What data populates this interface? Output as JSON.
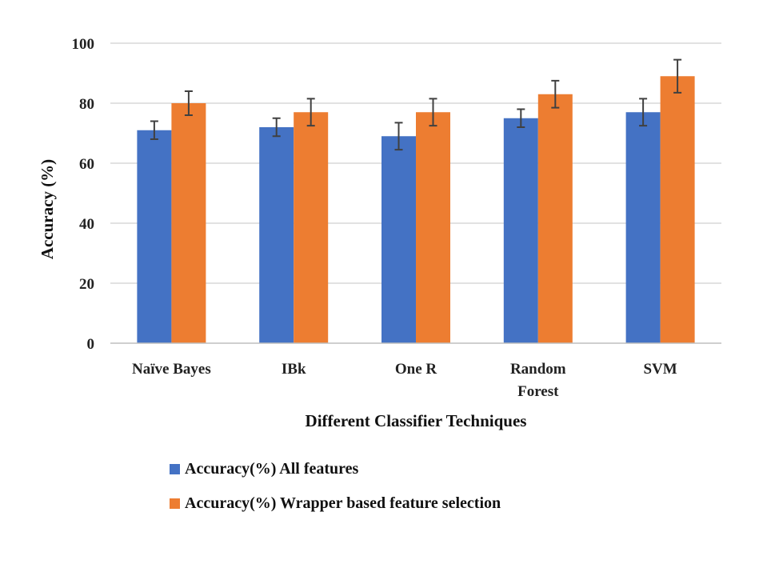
{
  "chart_data": {
    "type": "bar",
    "title": "",
    "xlabel": "Different Classifier Techniques",
    "ylabel": "Accuracy (%)",
    "ylim": [
      0,
      100
    ],
    "yticks": [
      0,
      20,
      40,
      60,
      80,
      100
    ],
    "grid": true,
    "legend_position": "bottom",
    "categories": [
      [
        "Naïve Bayes"
      ],
      [
        "IBk"
      ],
      [
        "One R"
      ],
      [
        "Random",
        "Forest"
      ],
      [
        "SVM"
      ]
    ],
    "series": [
      {
        "name": "Accuracy(%) All features",
        "color": "#4472C4",
        "values": [
          71,
          72,
          69,
          75,
          77
        ],
        "error": [
          3,
          3,
          4.5,
          3,
          4.5
        ]
      },
      {
        "name": "Accuracy(%) Wrapper based feature selection",
        "color": "#ED7D31",
        "values": [
          80,
          77,
          77,
          83,
          89
        ],
        "error": [
          4,
          4.5,
          4.5,
          4.5,
          5.5
        ]
      }
    ]
  }
}
